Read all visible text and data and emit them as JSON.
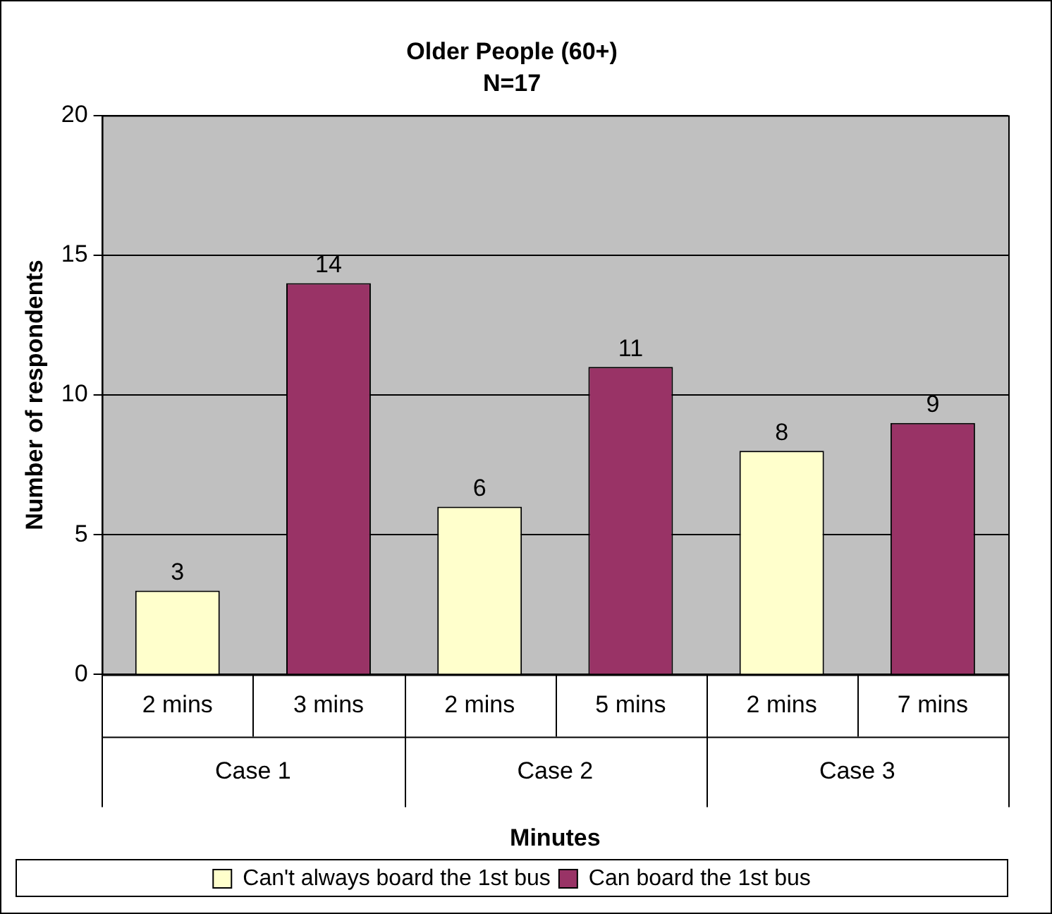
{
  "chart_data": {
    "type": "bar",
    "title": "Older People (60+)",
    "subtitle": "N=17",
    "xlabel": "Minutes",
    "ylabel": "Number of respondents",
    "categories": [
      "2 mins",
      "3 mins",
      "2 mins",
      "5 mins",
      "2 mins",
      "7 mins"
    ],
    "series": [
      {
        "name": "Can't always board the 1st bus",
        "color": "#ffffcc",
        "values": [
          3,
          null,
          6,
          null,
          8,
          null
        ]
      },
      {
        "name": "Can board the 1st bus",
        "color": "#993366",
        "values": [
          null,
          14,
          null,
          11,
          null,
          9
        ]
      }
    ],
    "annotations": [
      "Case 1",
      "Case 2",
      "Case 3"
    ],
    "ylim": [
      0,
      20
    ],
    "yticks": [
      0,
      5,
      10,
      15,
      20
    ],
    "grid": "y",
    "legend": "bottom",
    "data_labels": true
  }
}
